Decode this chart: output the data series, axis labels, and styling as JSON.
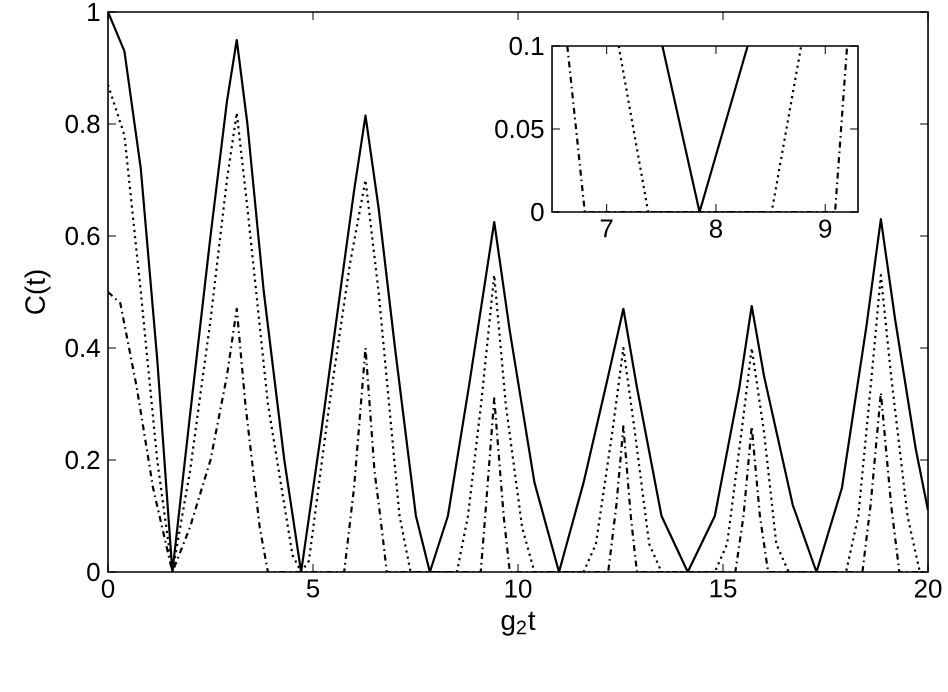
{
  "chart_data": [
    {
      "type": "line",
      "xlabel": "g$_{2}$t",
      "ylabel": "C(t)",
      "xlim": [
        0,
        20
      ],
      "ylim": [
        0,
        1
      ],
      "xticks": [
        0,
        5,
        10,
        15,
        20
      ],
      "yticks": [
        0,
        0.2,
        0.4,
        0.6,
        0.8,
        1
      ],
      "marker": "none",
      "series": [
        {
          "color": "#000000",
          "line_style": "solid",
          "x": [
            0,
            0.4,
            0.8,
            1.2,
            1.57,
            2.0,
            2.5,
            2.9,
            3.14,
            3.4,
            3.8,
            4.3,
            4.71,
            5.2,
            5.7,
            6.0,
            6.28,
            6.6,
            7.0,
            7.51,
            7.85,
            8.29,
            8.8,
            9.2,
            9.42,
            9.8,
            10.4,
            11.0,
            11.6,
            12.2,
            12.57,
            12.9,
            13.5,
            14.14,
            14.8,
            15.4,
            15.7,
            16.0,
            16.7,
            17.28,
            17.9,
            18.5,
            18.85,
            19.2,
            19.7,
            20
          ],
          "values": [
            1,
            0.93,
            0.72,
            0.38,
            0,
            0.28,
            0.6,
            0.84,
            0.95,
            0.8,
            0.5,
            0.2,
            0,
            0.25,
            0.52,
            0.68,
            0.815,
            0.65,
            0.4,
            0.1,
            0,
            0.1,
            0.33,
            0.52,
            0.625,
            0.43,
            0.16,
            0,
            0.16,
            0.35,
            0.47,
            0.33,
            0.1,
            0,
            0.1,
            0.33,
            0.475,
            0.35,
            0.12,
            0,
            0.15,
            0.44,
            0.63,
            0.45,
            0.22,
            0.11
          ]
        },
        {
          "color": "#000000",
          "line_style": "dotted",
          "x": [
            0,
            0.4,
            0.8,
            1.2,
            1.57,
            2.0,
            2.5,
            2.9,
            3.14,
            3.4,
            3.9,
            4.5,
            4.71,
            4.9,
            5.4,
            5.9,
            6.28,
            6.6,
            7.11,
            7.38,
            8.51,
            8.78,
            9.1,
            9.42,
            9.7,
            10.1,
            10.4,
            11.6,
            11.9,
            12.3,
            12.57,
            12.85,
            13.2,
            13.5,
            14.8,
            15.1,
            15.45,
            15.7,
            16.0,
            16.3,
            16.6,
            18.0,
            18.3,
            18.6,
            18.85,
            19.1,
            19.5,
            19.8,
            20
          ],
          "values": [
            0.87,
            0.78,
            0.5,
            0.2,
            0,
            0.18,
            0.45,
            0.7,
            0.82,
            0.65,
            0.3,
            0.03,
            0,
            0.02,
            0.3,
            0.55,
            0.7,
            0.5,
            0.1,
            0,
            0,
            0.1,
            0.3,
            0.53,
            0.3,
            0.08,
            0,
            0,
            0.05,
            0.25,
            0.4,
            0.25,
            0.05,
            0,
            0,
            0.05,
            0.25,
            0.4,
            0.25,
            0.05,
            0,
            0,
            0.1,
            0.33,
            0.53,
            0.35,
            0.1,
            0,
            0
          ]
        },
        {
          "color": "#000000",
          "line_style": "dashdot",
          "x": [
            0,
            0.3,
            0.7,
            1.1,
            1.57,
            2.0,
            2.5,
            2.9,
            3.14,
            3.35,
            3.7,
            3.9,
            5.76,
            6.0,
            6.28,
            6.5,
            6.64,
            6.8,
            9.09,
            9.2,
            9.42,
            9.65,
            9.8,
            12.2,
            12.4,
            12.57,
            12.75,
            12.9,
            15.3,
            15.5,
            15.7,
            15.9,
            16.1,
            18.4,
            18.6,
            18.85,
            19.1,
            19.3,
            20
          ],
          "values": [
            0.5,
            0.48,
            0.33,
            0.15,
            0,
            0.08,
            0.2,
            0.35,
            0.47,
            0.3,
            0.08,
            0,
            0,
            0.15,
            0.4,
            0.18,
            0.1,
            0,
            0,
            0.1,
            0.31,
            0.1,
            0,
            0,
            0.12,
            0.26,
            0.1,
            0,
            0,
            0.1,
            0.26,
            0.1,
            0,
            0,
            0.12,
            0.32,
            0.12,
            0,
            0
          ]
        }
      ]
    },
    {
      "type": "line",
      "xlim": [
        6.5,
        9.3
      ],
      "ylim": [
        0,
        0.1
      ],
      "xticks": [
        7,
        8,
        9
      ],
      "yticks": [
        0,
        0.05,
        0.1
      ],
      "marker": "none",
      "series": [
        {
          "color": "#000000",
          "line_style": "solid",
          "x": [
            7.51,
            7.85,
            8.29
          ],
          "values": [
            0.1,
            0,
            0.1
          ]
        },
        {
          "color": "#000000",
          "line_style": "dotted",
          "x": [
            7.11,
            7.38,
            8.51,
            8.78
          ],
          "values": [
            0.1,
            0,
            0,
            0.1
          ]
        },
        {
          "color": "#000000",
          "line_style": "dashdot",
          "x": [
            6.64,
            6.8,
            9.09,
            9.2
          ],
          "values": [
            0.1,
            0,
            0,
            0.1
          ]
        }
      ]
    }
  ]
}
